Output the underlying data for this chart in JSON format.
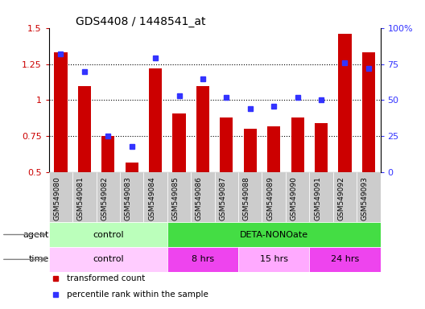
{
  "title": "GDS4408 / 1448541_at",
  "categories": [
    "GSM549080",
    "GSM549081",
    "GSM549082",
    "GSM549083",
    "GSM549084",
    "GSM549085",
    "GSM549086",
    "GSM549087",
    "GSM549088",
    "GSM549089",
    "GSM549090",
    "GSM549091",
    "GSM549092",
    "GSM549093"
  ],
  "bar_values": [
    1.33,
    1.1,
    0.75,
    0.57,
    1.22,
    0.91,
    1.1,
    0.88,
    0.8,
    0.82,
    0.88,
    0.84,
    1.46,
    1.33
  ],
  "dot_values": [
    82,
    70,
    25,
    18,
    79,
    53,
    65,
    52,
    44,
    46,
    52,
    50,
    76,
    72
  ],
  "bar_color": "#cc0000",
  "dot_color": "#3333ff",
  "ylim_left": [
    0.5,
    1.5
  ],
  "ylim_right": [
    0,
    100
  ],
  "yticks_left": [
    0.5,
    0.75,
    1.0,
    1.25,
    1.5
  ],
  "ytick_labels_left": [
    "0.5",
    "0.75",
    "1",
    "1.25",
    "1.5"
  ],
  "yticks_right": [
    0,
    25,
    50,
    75,
    100
  ],
  "ytick_labels_right": [
    "0",
    "25",
    "50",
    "75",
    "100%"
  ],
  "hlines": [
    0.75,
    1.0,
    1.25
  ],
  "agent_row": [
    {
      "label": "control",
      "start": 0,
      "end": 5,
      "color": "#bbffbb"
    },
    {
      "label": "DETA-NONOate",
      "start": 5,
      "end": 14,
      "color": "#44dd44"
    }
  ],
  "time_row": [
    {
      "label": "control",
      "start": 0,
      "end": 5,
      "color": "#ffccff"
    },
    {
      "label": "8 hrs",
      "start": 5,
      "end": 8,
      "color": "#ee44ee"
    },
    {
      "label": "15 hrs",
      "start": 8,
      "end": 11,
      "color": "#ffaaff"
    },
    {
      "label": "24 hrs",
      "start": 11,
      "end": 14,
      "color": "#ee44ee"
    }
  ],
  "legend_items": [
    {
      "label": "transformed count",
      "color": "#cc0000"
    },
    {
      "label": "percentile rank within the sample",
      "color": "#3333ff"
    }
  ],
  "agent_label": "agent",
  "time_label": "time",
  "xlabel_bg": "#cccccc",
  "background_color": "#ffffff",
  "bar_width": 0.55
}
